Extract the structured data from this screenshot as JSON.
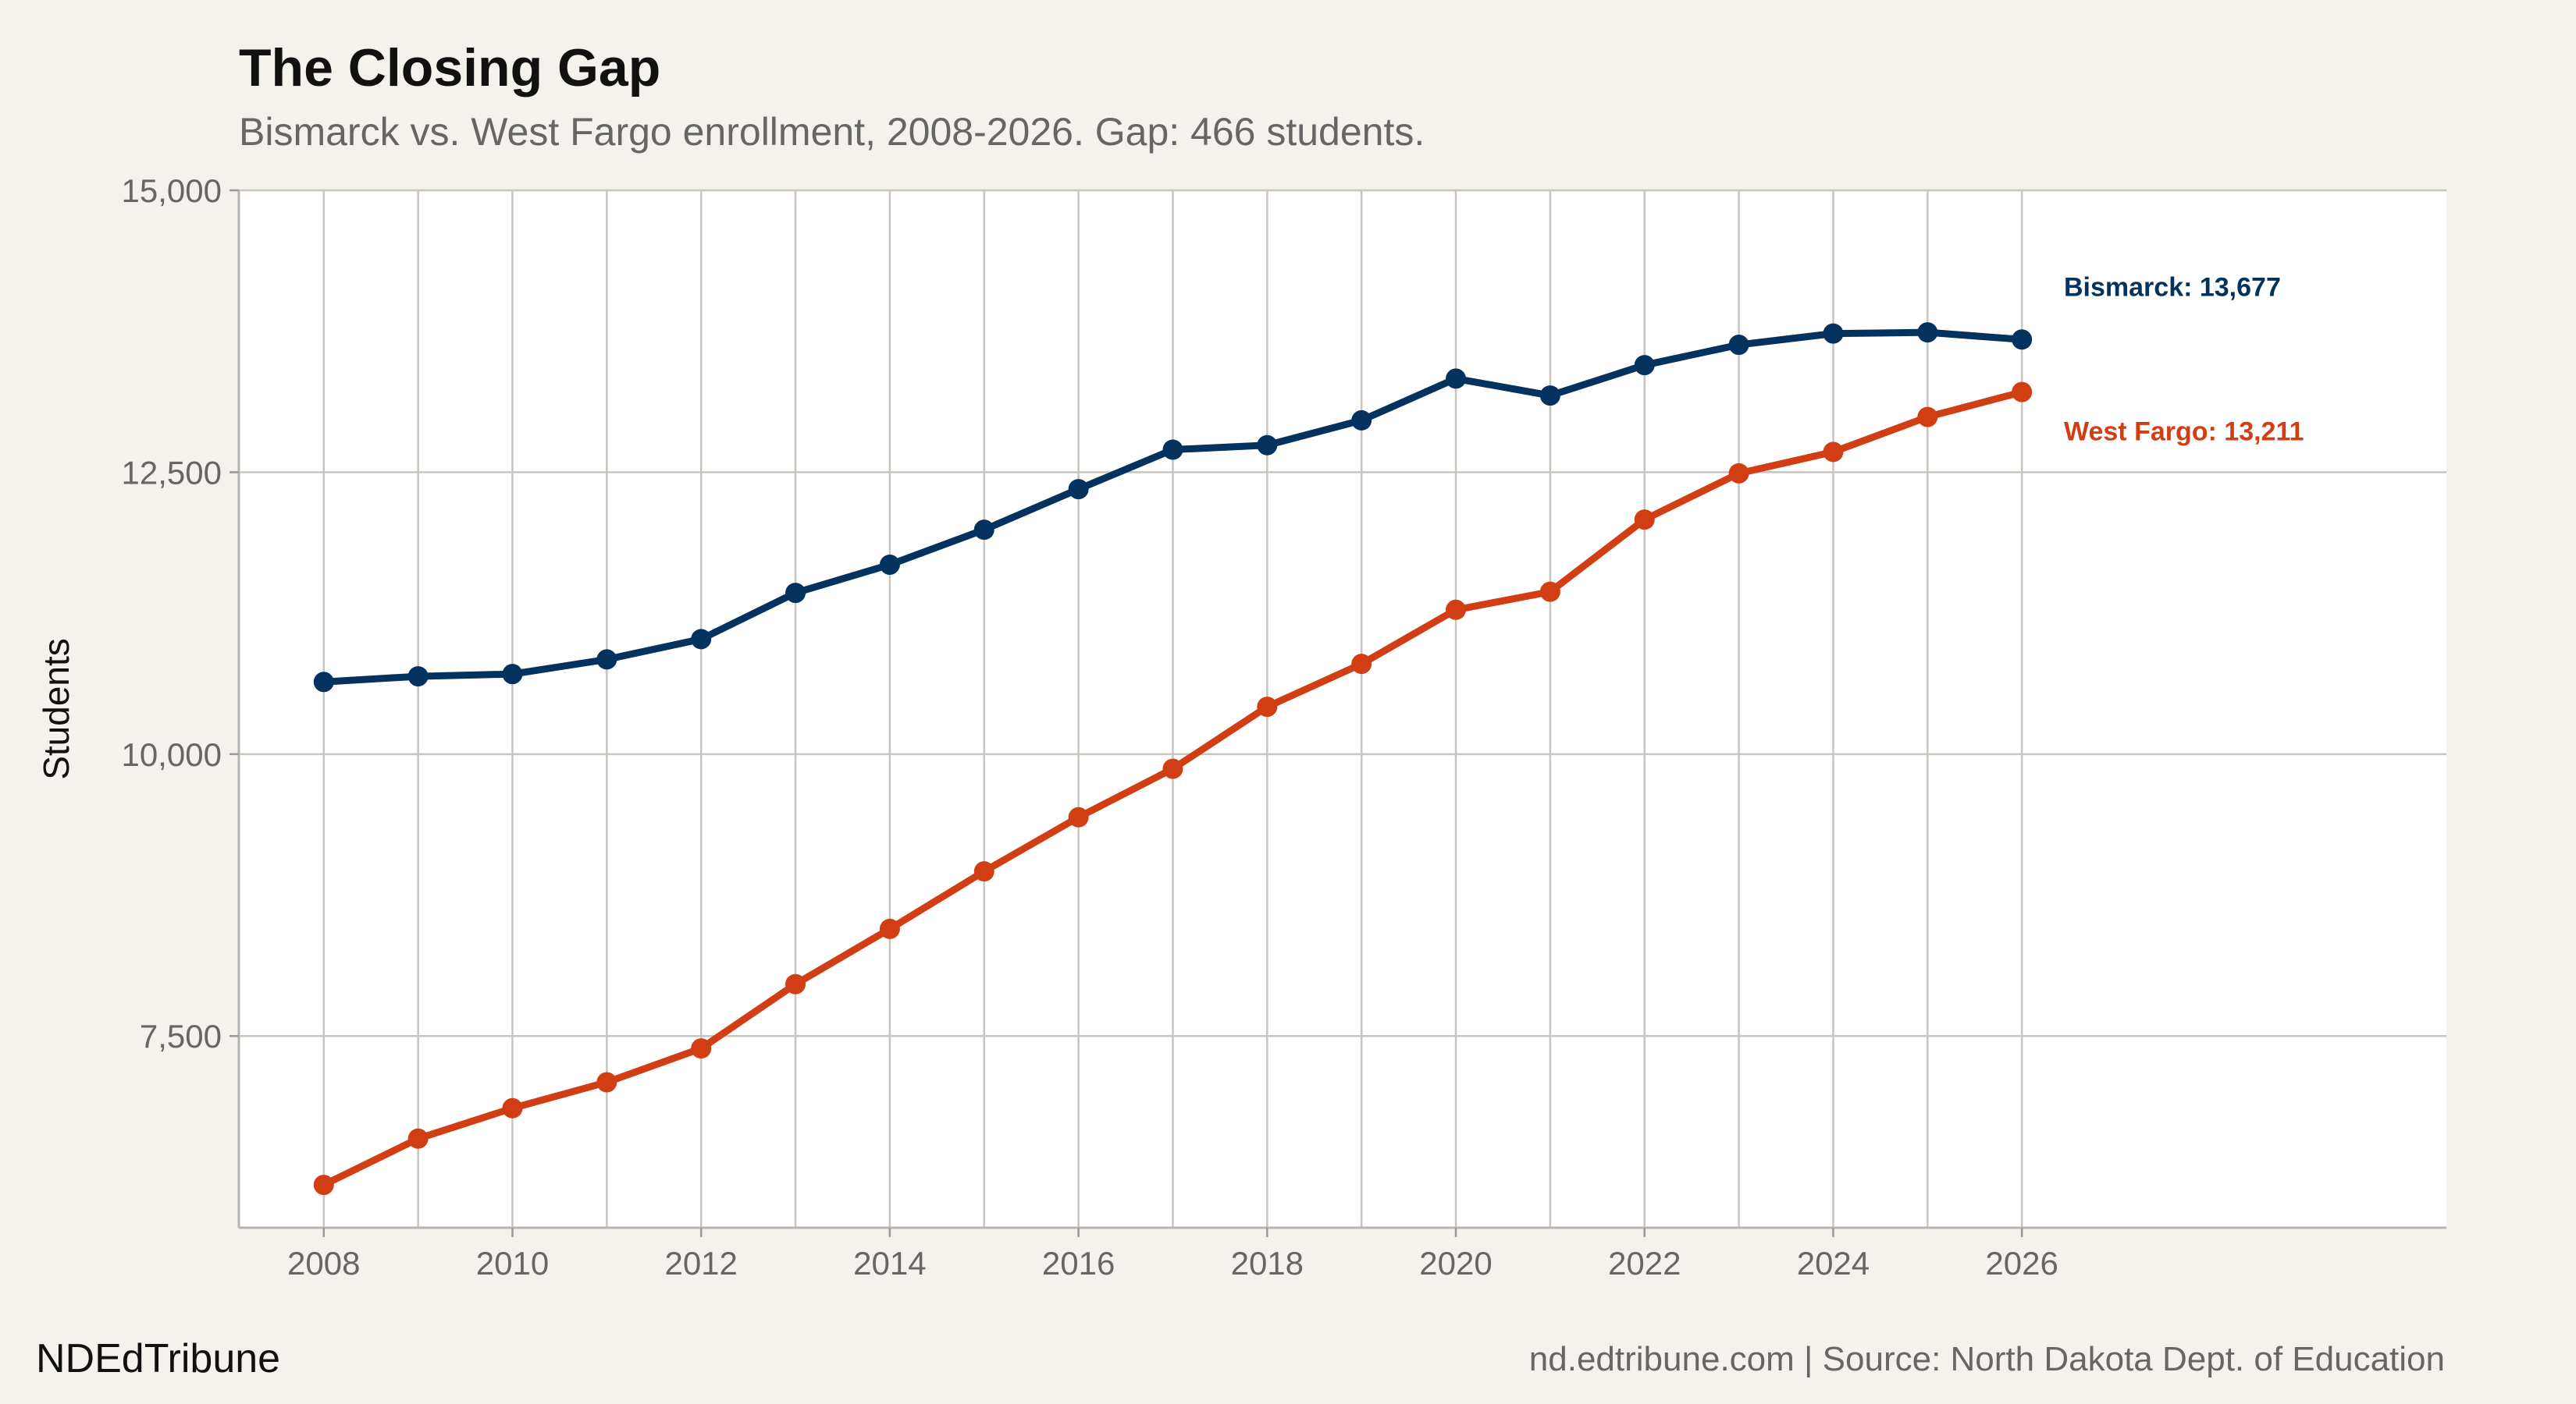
{
  "header": {
    "title": "The Closing Gap",
    "subtitle": "Bismarck vs. West Fargo enrollment, 2008-2026. Gap: 466 students."
  },
  "footer": {
    "brand": "NDEdTribune",
    "source": "nd.edtribune.com | Source: North Dakota Dept. of Education"
  },
  "colors": {
    "bismarck": "#04325f",
    "west_fargo": "#d13e14",
    "grid": "#c8c5c0",
    "panel": "#ffffff"
  },
  "chart_data": {
    "type": "line",
    "title": "The Closing Gap",
    "subtitle": "Bismarck vs. West Fargo enrollment, 2008-2026. Gap: 466 students.",
    "xlabel": "",
    "ylabel": "Students",
    "x": [
      2008,
      2009,
      2010,
      2011,
      2012,
      2013,
      2014,
      2015,
      2016,
      2017,
      2018,
      2019,
      2020,
      2021,
      2022,
      2023,
      2024,
      2025,
      2026
    ],
    "x_ticks": [
      "2008",
      "2010",
      "2012",
      "2014",
      "2016",
      "2018",
      "2020",
      "2022",
      "2024",
      "2026"
    ],
    "x_tick_values": [
      2008,
      2010,
      2012,
      2014,
      2016,
      2018,
      2020,
      2022,
      2024,
      2026
    ],
    "xlim": [
      2007.1,
      2030.5
    ],
    "y_ticks": [
      "7,500",
      "10,000",
      "12,500",
      "15,000"
    ],
    "y_tick_values": [
      7500,
      10000,
      12500,
      15000
    ],
    "ylim": [
      5800,
      15000
    ],
    "grid": true,
    "series": [
      {
        "name": "Bismarck",
        "color": "#04325f",
        "values": [
          10640,
          10690,
          10710,
          10840,
          11020,
          11430,
          11680,
          11990,
          12350,
          12700,
          12740,
          12960,
          13330,
          13180,
          13450,
          13630,
          13730,
          13740,
          13677
        ],
        "end_label": "Bismarck: 13,677"
      },
      {
        "name": "West Fargo",
        "color": "#d13e14",
        "values": [
          6180,
          6590,
          6860,
          7090,
          7390,
          7960,
          8450,
          8960,
          9440,
          9870,
          10420,
          10800,
          11280,
          11440,
          12080,
          12490,
          12680,
          12990,
          13211
        ],
        "end_label": "West Fargo: 13,211"
      }
    ]
  }
}
